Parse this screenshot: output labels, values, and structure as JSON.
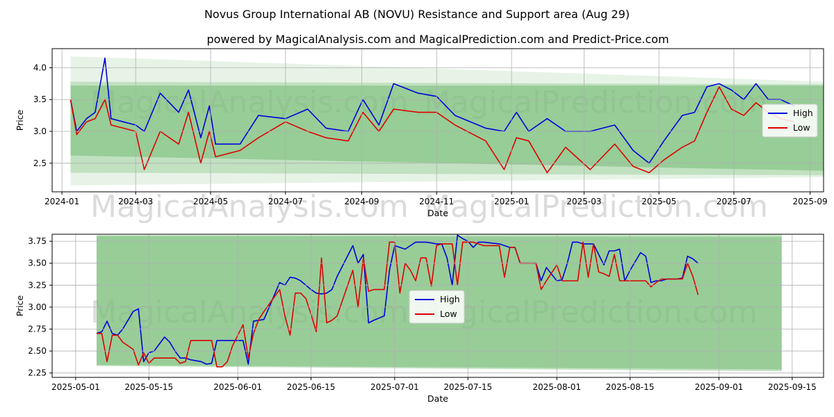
{
  "header": {
    "title": "Novus Group International AB (NOVU) Resistance and Support area (Aug 29)",
    "subtitle": "powered by MagicalAnalysis.com and MagicalPrediction.com and Predict-Price.com"
  },
  "watermarks": {
    "top_left": "MagicalAnalysis.com",
    "top_right": "MagicalPrediction.com",
    "bottom_left": "MagicalAnalysis.com",
    "bottom_right": "MagicalPrediction.com"
  },
  "colors": {
    "high": "#0000dd",
    "low": "#dd0000",
    "band": "#7cbf7c",
    "grid": "#b0b0b0"
  },
  "chart_data": [
    {
      "type": "line",
      "title": "",
      "xlabel": "Date",
      "ylabel": "Price",
      "x_ticks": [
        "2024-01",
        "2024-03",
        "2024-05",
        "2024-07",
        "2024-09",
        "2024-11",
        "2025-01",
        "2025-03",
        "2025-05",
        "2025-07",
        "2025-09"
      ],
      "x_tick_days": [
        0,
        60,
        121,
        182,
        244,
        305,
        366,
        425,
        486,
        547,
        609
      ],
      "xlim": [
        -8,
        620
      ],
      "y_ticks": [
        "2.5",
        "3.0",
        "3.5",
        "4.0"
      ],
      "y_tick_values": [
        2.5,
        3.0,
        3.5,
        4.0
      ],
      "ylim": [
        2.05,
        4.3
      ],
      "legend": {
        "position": "center-right",
        "entries": [
          "High",
          "Low"
        ]
      },
      "bands": [
        {
          "name": "outer",
          "x": [
            7,
            621
          ],
          "upper": [
            4.18,
            3.78
          ],
          "lower": [
            2.15,
            2.28
          ],
          "opacity": 0.18
        },
        {
          "name": "middle",
          "x": [
            7,
            621
          ],
          "upper": [
            3.78,
            3.74
          ],
          "lower": [
            2.35,
            2.31
          ],
          "opacity": 0.35
        },
        {
          "name": "inner",
          "x": [
            7,
            621
          ],
          "upper": [
            3.72,
            3.72
          ],
          "lower": [
            2.62,
            2.38
          ],
          "opacity": 0.6
        }
      ],
      "series": [
        {
          "name": "High",
          "x": [
            7,
            12,
            20,
            27,
            35,
            40,
            50,
            60,
            67,
            80,
            95,
            103,
            113,
            120,
            125,
            145,
            160,
            182,
            200,
            215,
            233,
            245,
            258,
            270,
            290,
            305,
            320,
            345,
            360,
            370,
            380,
            395,
            410,
            430,
            450,
            465,
            478,
            490,
            505,
            515,
            525,
            535,
            545,
            555,
            565,
            575,
            585,
            596
          ],
          "values": [
            3.5,
            3.0,
            3.2,
            3.3,
            4.15,
            3.2,
            3.15,
            3.1,
            3.0,
            3.6,
            3.3,
            3.65,
            2.9,
            3.4,
            2.8,
            2.8,
            3.25,
            3.2,
            3.35,
            3.05,
            3.0,
            3.5,
            3.1,
            3.75,
            3.6,
            3.55,
            3.25,
            3.05,
            3.0,
            3.3,
            3.0,
            3.2,
            3.0,
            3.0,
            3.1,
            2.7,
            2.5,
            2.85,
            3.25,
            3.3,
            3.7,
            3.75,
            3.65,
            3.5,
            3.75,
            3.5,
            3.5,
            3.4
          ]
        },
        {
          "name": "Low",
          "x": [
            7,
            12,
            20,
            27,
            35,
            40,
            50,
            60,
            67,
            80,
            95,
            103,
            113,
            120,
            125,
            145,
            160,
            182,
            200,
            215,
            233,
            245,
            258,
            270,
            290,
            305,
            320,
            345,
            360,
            370,
            380,
            395,
            410,
            430,
            450,
            465,
            478,
            490,
            505,
            515,
            525,
            535,
            545,
            555,
            565,
            575,
            585,
            596
          ],
          "values": [
            3.5,
            2.95,
            3.15,
            3.2,
            3.5,
            3.1,
            3.05,
            3.0,
            2.4,
            3.0,
            2.8,
            3.3,
            2.5,
            3.0,
            2.6,
            2.7,
            2.9,
            3.15,
            3.0,
            2.9,
            2.85,
            3.3,
            3.0,
            3.35,
            3.3,
            3.3,
            3.1,
            2.85,
            2.4,
            2.9,
            2.85,
            2.35,
            2.75,
            2.4,
            2.8,
            2.45,
            2.35,
            2.55,
            2.75,
            2.85,
            3.3,
            3.7,
            3.35,
            3.25,
            3.45,
            3.3,
            3.2,
            3.15
          ]
        }
      ]
    },
    {
      "type": "line",
      "title": "",
      "xlabel": "Date",
      "ylabel": "Price",
      "x_ticks": [
        "2025-05-01",
        "2025-05-15",
        "2025-06-01",
        "2025-06-15",
        "2025-07-01",
        "2025-07-15",
        "2025-08-01",
        "2025-08-15",
        "2025-09-01",
        "2025-09-15"
      ],
      "x_tick_days": [
        0,
        14,
        31,
        45,
        61,
        75,
        92,
        106,
        123,
        137
      ],
      "xlim": [
        -4.5,
        143
      ],
      "y_ticks": [
        "2.25",
        "2.50",
        "2.75",
        "3.00",
        "3.25",
        "3.50",
        "3.75"
      ],
      "y_tick_values": [
        2.25,
        2.5,
        2.75,
        3.0,
        3.25,
        3.5,
        3.75
      ],
      "ylim": [
        2.2,
        3.83
      ],
      "legend": {
        "position": "center",
        "entries": [
          "High",
          "Low"
        ]
      },
      "bands": [
        {
          "name": "outer",
          "x": [
            4,
            135
          ],
          "upper": [
            3.82,
            3.83
          ],
          "lower": [
            2.33,
            2.27
          ],
          "opacity": 0.45
        },
        {
          "name": "inner",
          "x": [
            4,
            135
          ],
          "upper": [
            3.81,
            3.8
          ],
          "lower": [
            2.34,
            2.29
          ],
          "opacity": 0.6
        }
      ],
      "series": [
        {
          "name": "High",
          "x": [
            4,
            5,
            6,
            7,
            8,
            9,
            11,
            12,
            13,
            14,
            15,
            17,
            18,
            19,
            20,
            21,
            22,
            24,
            25,
            26,
            27,
            28,
            29,
            30,
            32,
            33,
            34,
            35,
            36,
            39,
            40,
            41,
            42,
            43,
            44,
            45,
            46,
            47,
            48,
            49,
            50,
            53,
            54,
            55,
            56,
            57,
            59,
            60,
            61,
            62,
            63,
            64,
            65,
            66,
            67,
            68,
            69,
            70,
            71,
            72,
            73,
            74,
            75,
            76,
            77,
            78,
            81,
            82,
            83,
            84,
            85,
            86,
            87,
            88,
            89,
            90,
            92,
            93,
            94,
            95,
            96,
            97,
            98,
            99,
            100,
            101,
            102,
            103,
            104,
            105,
            106,
            107,
            108,
            109,
            110,
            111,
            112,
            113,
            114,
            115,
            116,
            117,
            118,
            119
          ],
          "values": [
            2.7,
            2.72,
            2.84,
            2.7,
            2.68,
            2.75,
            2.95,
            2.98,
            2.38,
            2.48,
            2.5,
            2.66,
            2.6,
            2.5,
            2.42,
            2.42,
            2.4,
            2.38,
            2.35,
            2.36,
            2.62,
            2.62,
            2.62,
            2.62,
            2.62,
            2.35,
            2.84,
            2.85,
            2.86,
            3.28,
            3.25,
            3.34,
            3.33,
            3.3,
            3.25,
            3.2,
            3.16,
            3.15,
            3.16,
            3.2,
            3.35,
            3.7,
            3.5,
            3.6,
            2.82,
            2.85,
            2.9,
            3.42,
            3.7,
            3.68,
            3.66,
            3.7,
            3.74,
            3.74,
            3.74,
            3.73,
            3.72,
            3.72,
            3.56,
            3.25,
            3.82,
            3.78,
            3.75,
            3.68,
            3.74,
            3.74,
            3.72,
            3.7,
            3.68,
            3.68,
            3.5,
            3.5,
            3.5,
            3.5,
            3.3,
            3.45,
            3.3,
            3.31,
            3.5,
            3.74,
            3.74,
            3.72,
            3.72,
            3.72,
            3.6,
            3.48,
            3.64,
            3.64,
            3.66,
            3.3,
            3.42,
            3.52,
            3.62,
            3.58,
            3.28,
            3.3,
            3.3,
            3.32,
            3.32,
            3.32,
            3.33,
            3.58,
            3.55,
            3.5
          ]
        },
        {
          "name": "Low",
          "x": [
            4,
            5,
            6,
            7,
            8,
            9,
            11,
            12,
            13,
            14,
            15,
            17,
            18,
            19,
            20,
            21,
            22,
            24,
            25,
            26,
            27,
            28,
            29,
            30,
            32,
            33,
            34,
            35,
            36,
            39,
            40,
            41,
            42,
            43,
            44,
            45,
            46,
            47,
            48,
            49,
            50,
            53,
            54,
            55,
            56,
            57,
            59,
            60,
            61,
            62,
            63,
            64,
            65,
            66,
            67,
            68,
            69,
            70,
            71,
            72,
            73,
            74,
            75,
            76,
            77,
            78,
            81,
            82,
            83,
            84,
            85,
            86,
            87,
            88,
            89,
            90,
            92,
            93,
            94,
            95,
            96,
            97,
            98,
            99,
            100,
            101,
            102,
            103,
            104,
            105,
            106,
            107,
            108,
            109,
            110,
            111,
            112,
            113,
            114,
            115,
            116,
            117,
            118,
            119
          ],
          "values": [
            2.7,
            2.7,
            2.38,
            2.68,
            2.68,
            2.6,
            2.52,
            2.34,
            2.48,
            2.36,
            2.42,
            2.42,
            2.42,
            2.42,
            2.36,
            2.38,
            2.62,
            2.62,
            2.62,
            2.62,
            2.32,
            2.32,
            2.38,
            2.56,
            2.8,
            2.42,
            2.7,
            2.86,
            2.95,
            3.2,
            2.9,
            2.68,
            3.16,
            3.16,
            3.1,
            2.92,
            2.72,
            3.56,
            2.82,
            2.85,
            2.9,
            3.42,
            3.0,
            3.56,
            3.18,
            3.2,
            3.2,
            3.74,
            3.74,
            3.16,
            3.5,
            3.42,
            3.3,
            3.56,
            3.56,
            3.24,
            3.7,
            3.72,
            3.72,
            3.72,
            3.25,
            3.74,
            3.74,
            3.74,
            3.72,
            3.7,
            3.7,
            3.34,
            3.68,
            3.68,
            3.5,
            3.5,
            3.5,
            3.5,
            3.2,
            3.3,
            3.48,
            3.3,
            3.3,
            3.3,
            3.3,
            3.74,
            3.34,
            3.72,
            3.4,
            3.38,
            3.35,
            3.6,
            3.3,
            3.3,
            3.3,
            3.3,
            3.3,
            3.3,
            3.23,
            3.28,
            3.32,
            3.32,
            3.32,
            3.32,
            3.32,
            3.5,
            3.35,
            3.14
          ]
        }
      ]
    }
  ]
}
